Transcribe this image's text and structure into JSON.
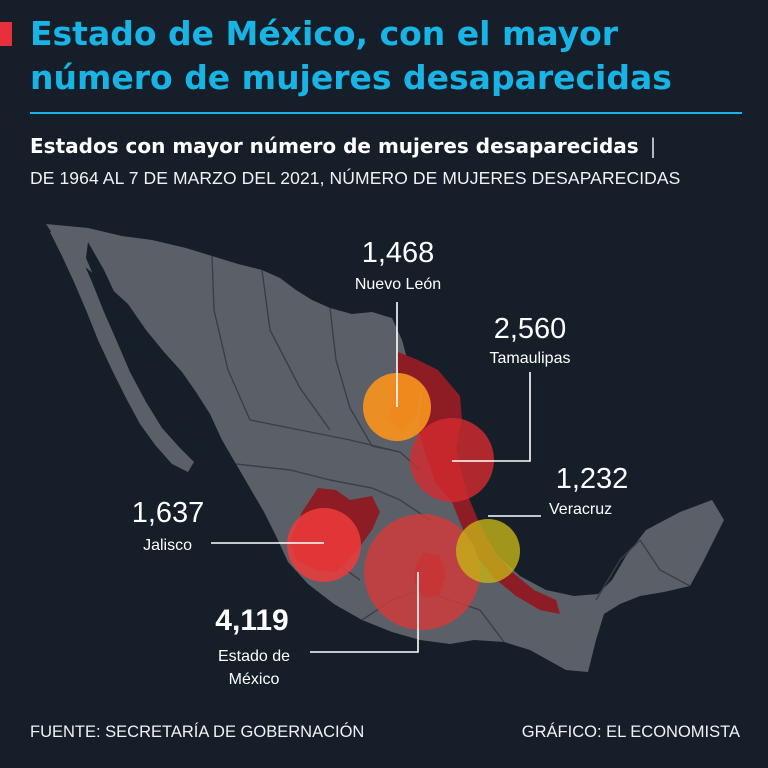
{
  "header": {
    "headline": "Estado de México, con el mayor número de mujeres desaparecidas",
    "subtitle": "Estados con mayor número de mujeres desaparecidas",
    "separator": "|",
    "subnote": "DE 1964 AL 7 DE MARZO DEL 2021, NÚMERO DE MUJERES DESAPARECIDAS"
  },
  "states": [
    {
      "name": "Nuevo León",
      "value": "1,468",
      "color": "#f7931e"
    },
    {
      "name": "Tamaulipas",
      "value": "2,560",
      "color": "#d42a30"
    },
    {
      "name": "Veracruz",
      "value": "1,232",
      "color": "#c6b318"
    },
    {
      "name": "Jalisco",
      "value": "1,637",
      "color": "#ee3b3b"
    },
    {
      "name_line1": "Estado de",
      "name_line2": "México",
      "value": "4,119",
      "color": "#d33a3a"
    }
  ],
  "colors": {
    "background": "#151e29",
    "land": "#5b6068",
    "borders": "#3a3f47",
    "highlight_state": "#8e1c24",
    "accent": "#19b4e6",
    "marker": "#e8303a"
  },
  "footer": {
    "source": "FUENTE: SECRETARÍA DE GOBERNACIÓN",
    "credit": "GRÁFICO: EL ECONOMISTA"
  }
}
